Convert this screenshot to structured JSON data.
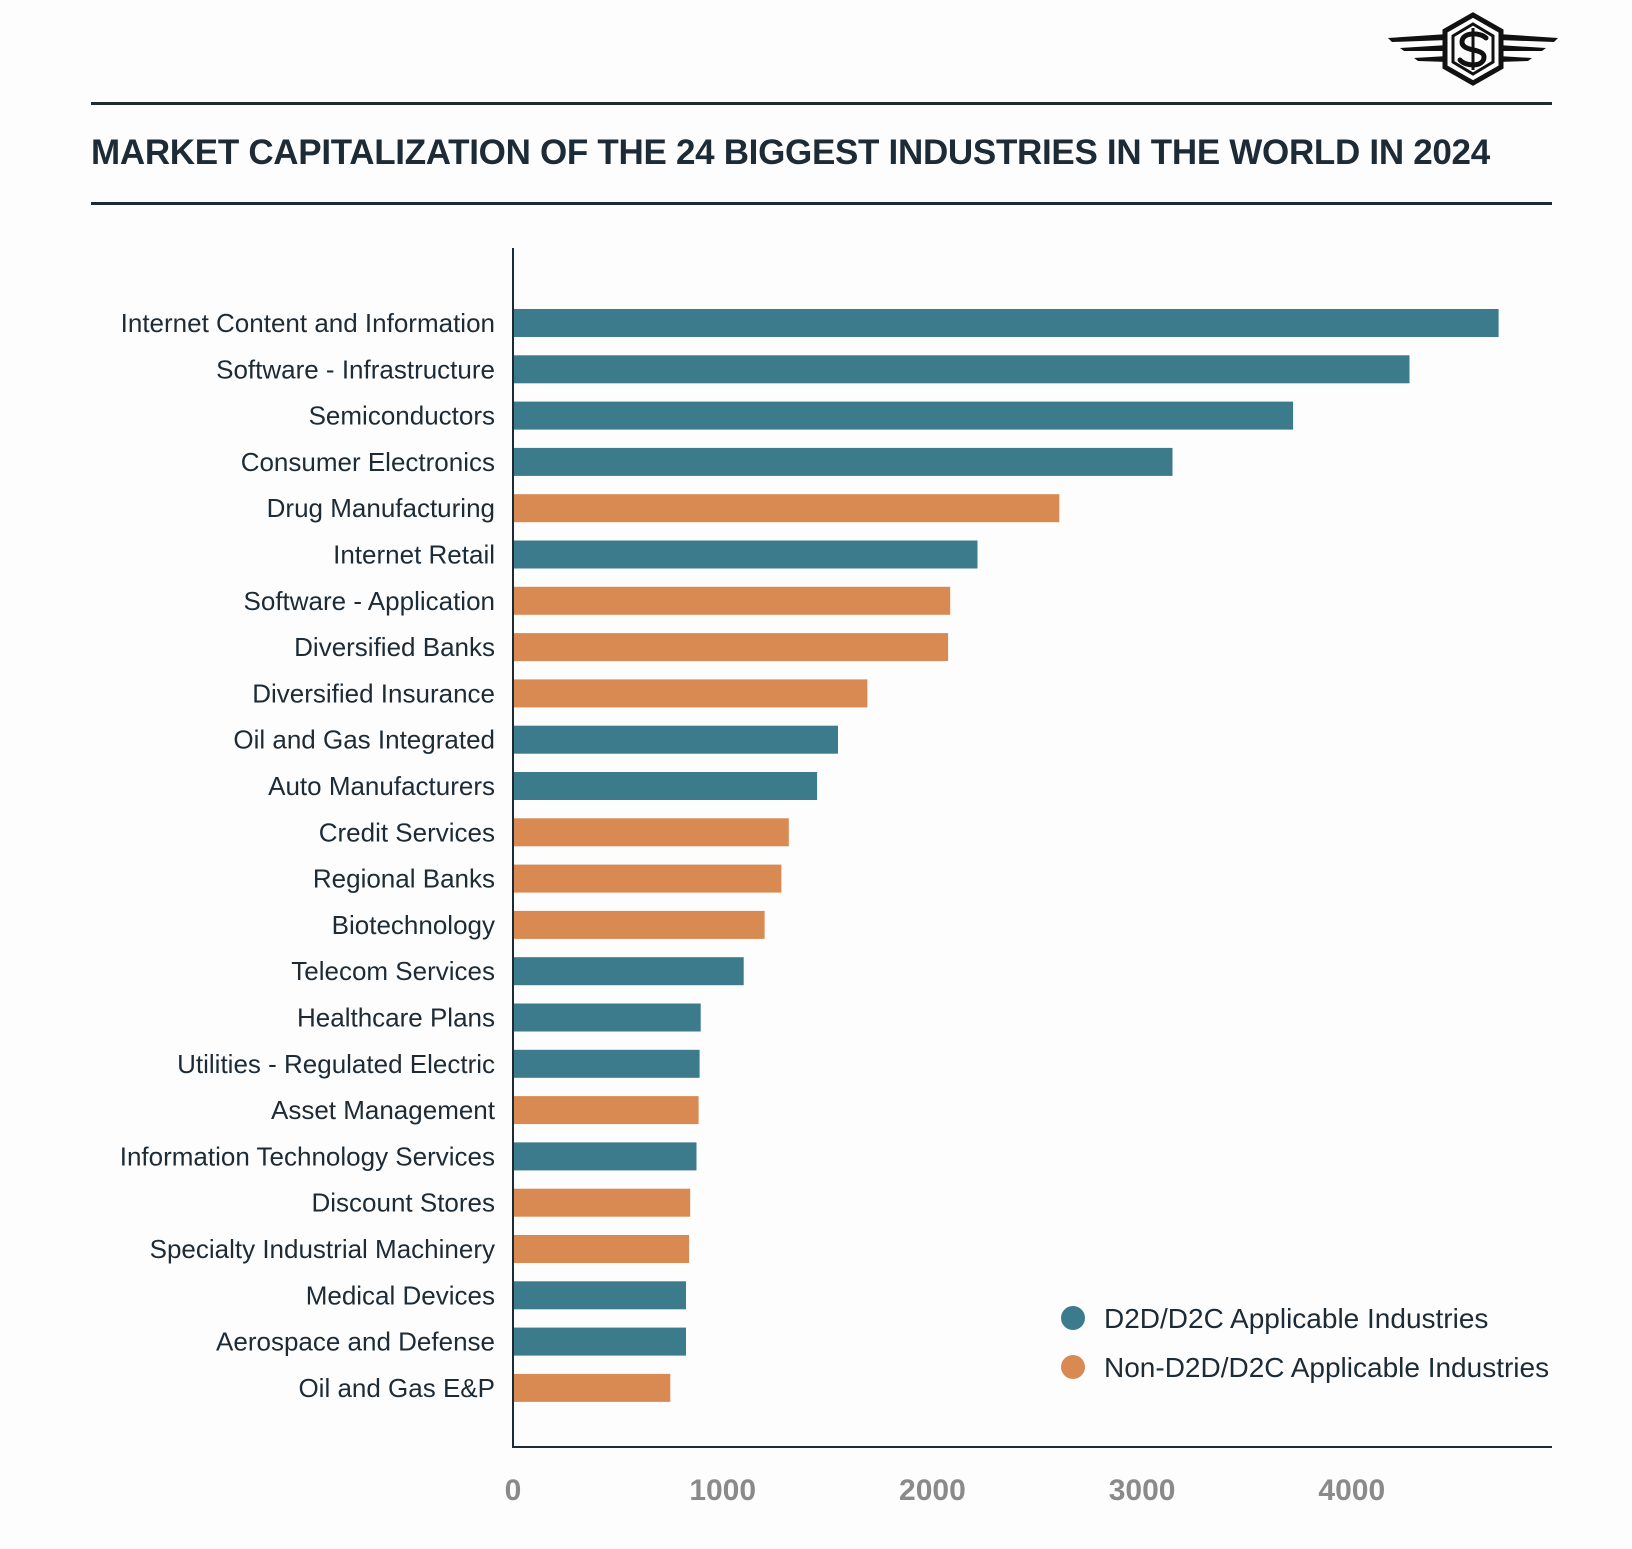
{
  "header": {
    "title": "MARKET CAPITALIZATION OF THE 24 BIGGEST INDUSTRIES IN THE WORLD IN 2024",
    "logo_icon": "winged-s-hexagon-logo-icon"
  },
  "colors": {
    "d2d": "#3b7b8c",
    "non_d2d": "#d98a52",
    "text": "#1d2b36",
    "axis": "#1d2b36",
    "tick": "#8a8a8a"
  },
  "chart_data": {
    "type": "bar",
    "orientation": "horizontal",
    "title": "MARKET CAPITALIZATION OF THE 24 BIGGEST INDUSTRIES IN THE WORLD IN 2024",
    "xlabel": "",
    "ylabel": "",
    "xlim": [
      0,
      4940
    ],
    "xticks": [
      0,
      1000,
      2000,
      3000,
      4000
    ],
    "grid": false,
    "legend_position": "bottom-right",
    "series": [
      {
        "key": "d2d",
        "name": "D2D/D2C Applicable Industries"
      },
      {
        "key": "non_d2d",
        "name": "Non-D2D/D2C Applicable Industries"
      }
    ],
    "categories": [
      "Internet Content and Information",
      "Software - Infrastructure",
      "Semiconductors",
      "Consumer Electronics",
      "Drug Manufacturing",
      "Internet Retail",
      "Software - Application",
      "Diversified Banks",
      "Diversified Insurance",
      "Oil and Gas Integrated",
      "Auto Manufacturers",
      "Credit Services",
      "Regional Banks",
      "Biotechnology",
      "Telecom Services",
      "Healthcare Plans",
      "Utilities - Regulated Electric",
      "Asset Management",
      "Information Technology Services",
      "Discount Stores",
      "Specialty Industrial Machinery",
      "Medical Devices",
      "Aerospace and Defense",
      "Oil and Gas E&P"
    ],
    "values": [
      4700,
      4275,
      3720,
      3145,
      2605,
      2215,
      2085,
      2075,
      1690,
      1550,
      1450,
      1315,
      1280,
      1200,
      1100,
      895,
      890,
      885,
      875,
      845,
      840,
      825,
      825,
      750
    ],
    "groups": [
      "d2d",
      "d2d",
      "d2d",
      "d2d",
      "non_d2d",
      "d2d",
      "non_d2d",
      "non_d2d",
      "non_d2d",
      "d2d",
      "d2d",
      "non_d2d",
      "non_d2d",
      "non_d2d",
      "d2d",
      "d2d",
      "d2d",
      "non_d2d",
      "d2d",
      "non_d2d",
      "non_d2d",
      "d2d",
      "d2d",
      "non_d2d"
    ]
  }
}
